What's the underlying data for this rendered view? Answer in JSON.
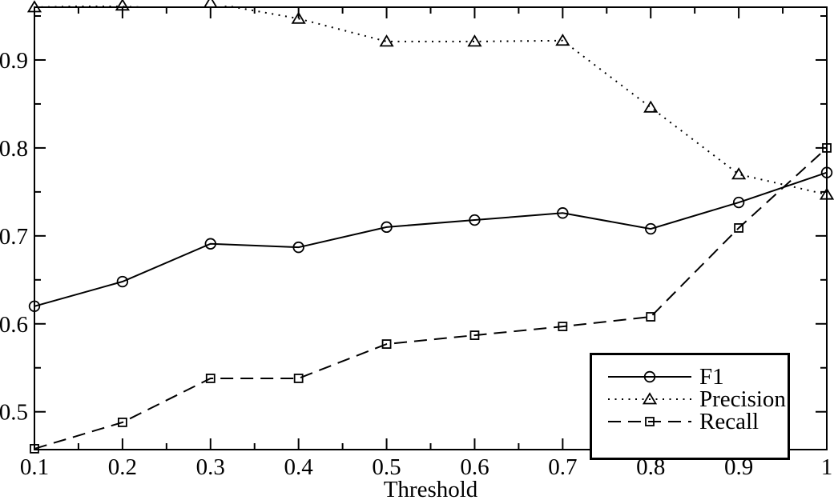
{
  "figure": {
    "background_color": "#ffffff",
    "foreground_color": "#000000"
  },
  "chart_data": {
    "type": "line",
    "title": "",
    "xlabel": "Threshold",
    "ylabel": "",
    "xlim": [
      0.1,
      1.0
    ],
    "ylim": [
      0.457,
      0.96
    ],
    "x_ticks": [
      0.1,
      0.2,
      0.3,
      0.4,
      0.5,
      0.6,
      0.7,
      0.8,
      0.9,
      1.0
    ],
    "x_tick_labels": [
      "0.1",
      "0.2",
      "0.3",
      "0.4",
      "0.5",
      "0.6",
      "0.7",
      "0.8",
      "0.9",
      "1"
    ],
    "y_ticks": [
      0.5,
      0.6,
      0.7,
      0.8,
      0.9
    ],
    "y_tick_labels": [
      "0.5",
      "0.6",
      "0.7",
      "0.8",
      "0.9"
    ],
    "minor_tick_step": 0.05,
    "grid": false,
    "legend_position": "lower right",
    "x": [
      0.1,
      0.2,
      0.3,
      0.4,
      0.5,
      0.6,
      0.7,
      0.8,
      0.9,
      1.0
    ],
    "series": [
      {
        "name": "F1",
        "line_style": "solid",
        "marker": "circle",
        "color": "#000000",
        "values": [
          0.62,
          0.648,
          0.691,
          0.687,
          0.71,
          0.718,
          0.726,
          0.708,
          0.738,
          0.772
        ]
      },
      {
        "name": "Precision",
        "line_style": "dotted",
        "marker": "triangle",
        "color": "#000000",
        "values": [
          0.96,
          0.962,
          0.965,
          0.947,
          0.921,
          0.921,
          0.922,
          0.846,
          0.77,
          0.747
        ]
      },
      {
        "name": "Recall",
        "line_style": "dashed",
        "marker": "square",
        "color": "#000000",
        "values": [
          0.458,
          0.488,
          0.538,
          0.538,
          0.577,
          0.587,
          0.597,
          0.608,
          0.709,
          0.8
        ]
      }
    ]
  }
}
